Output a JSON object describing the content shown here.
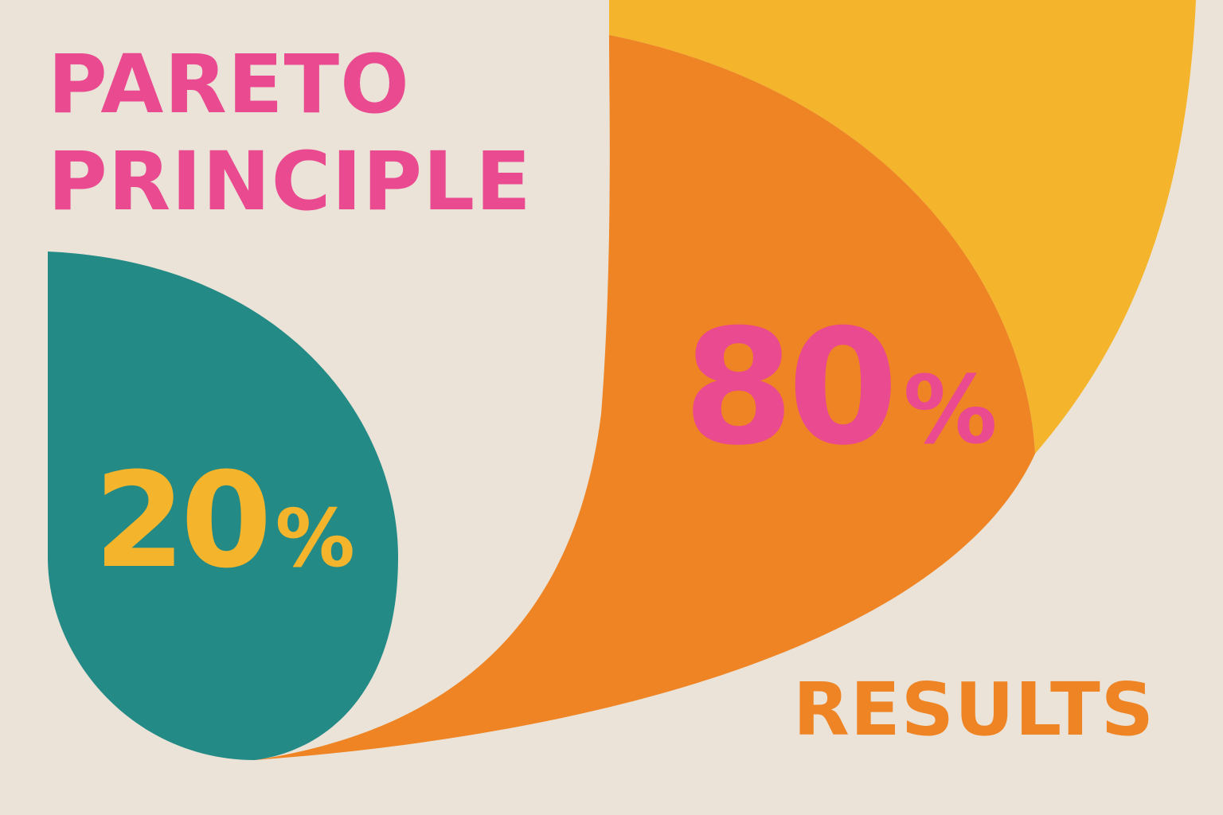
{
  "title": {
    "line1": "PARETO",
    "line2": "PRINCIPLE"
  },
  "causes": {
    "value": "20",
    "symbol": "%"
  },
  "effects": {
    "value": "80",
    "symbol": "%"
  },
  "results_label": "RESULTS",
  "colors": {
    "background": "#ebe3d8",
    "pink": "#ea4a8f",
    "teal": "#238a86",
    "orange": "#ee8424",
    "yellow": "#f4b42b"
  }
}
